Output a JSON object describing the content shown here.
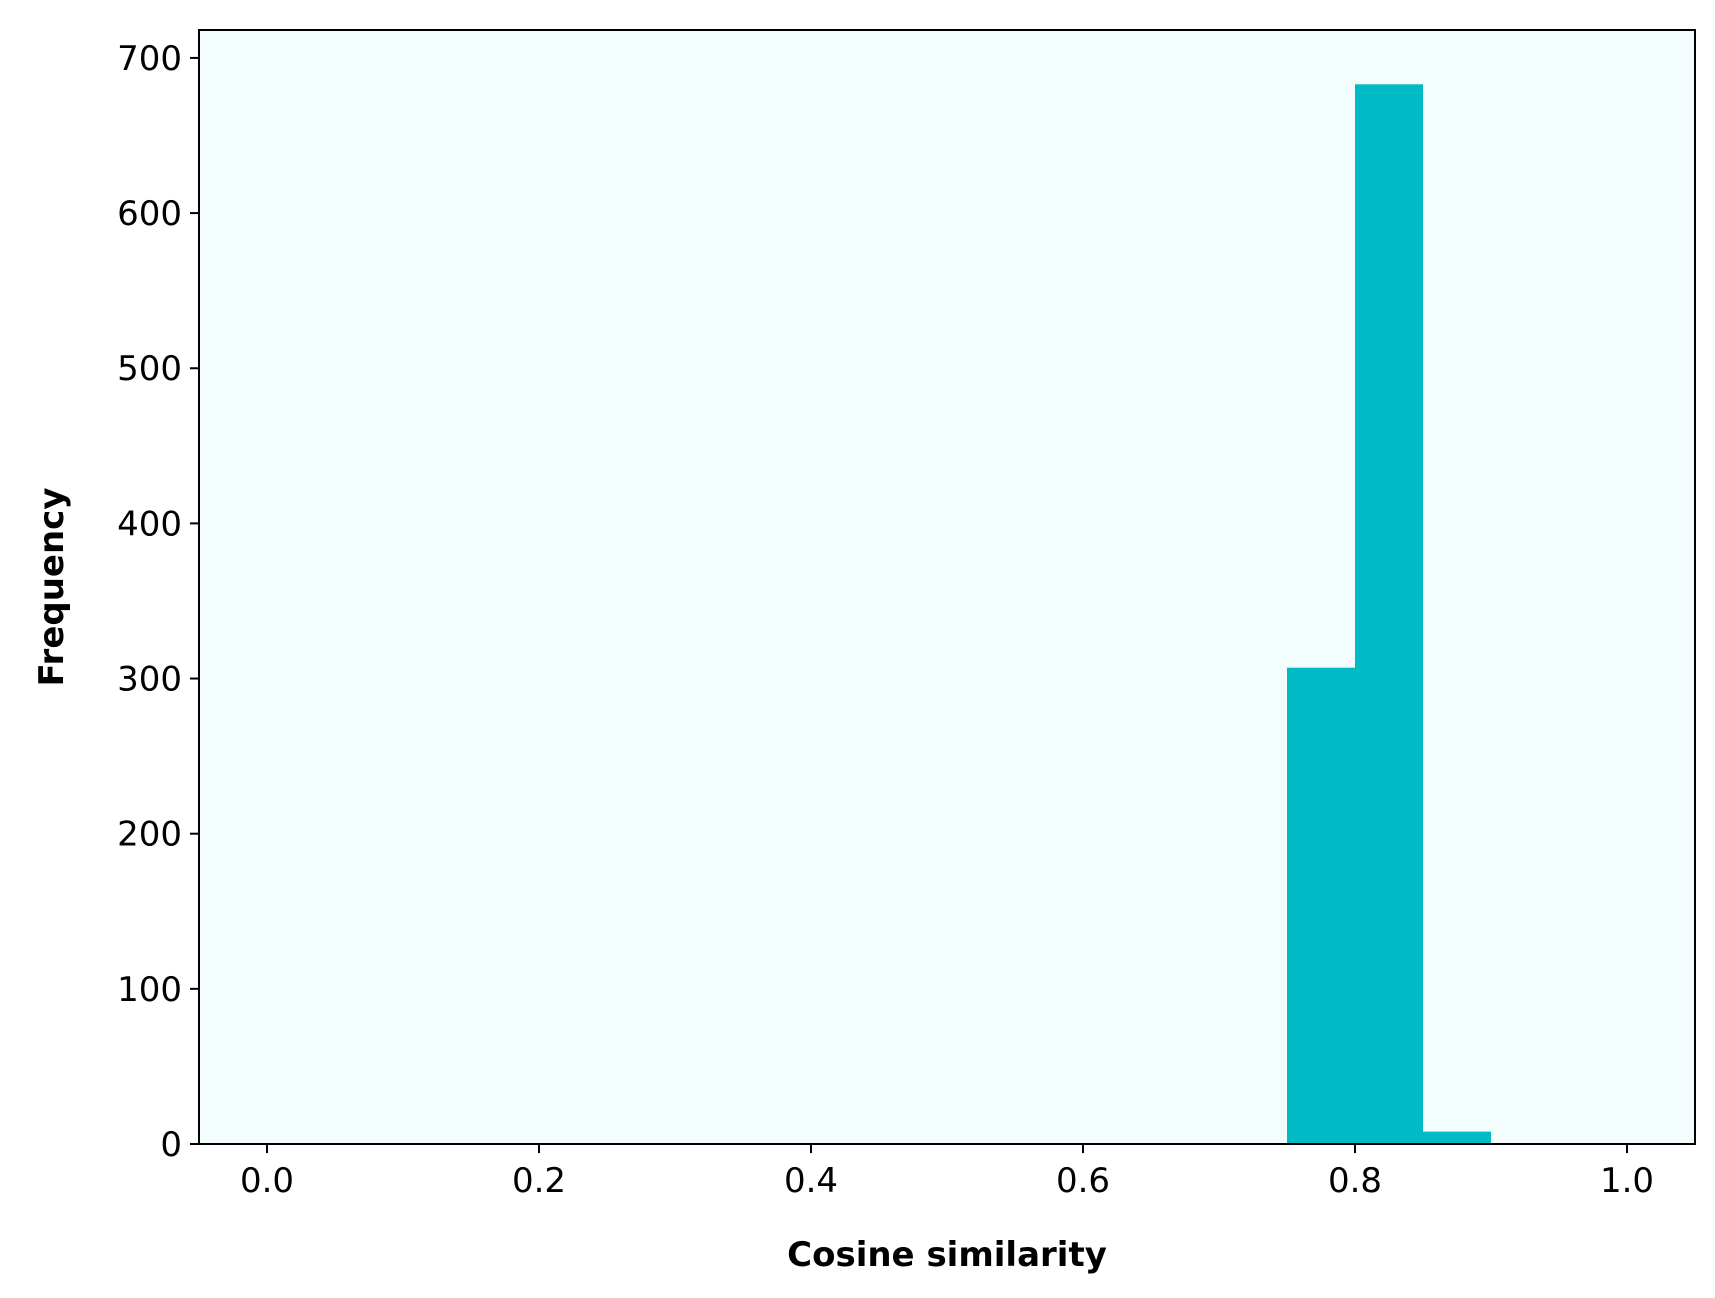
{
  "chart_data": {
    "type": "bar",
    "title": "",
    "xlabel": "Cosine similarity",
    "ylabel": "Frequency",
    "xlim": [
      -0.05,
      1.05
    ],
    "ylim": [
      0,
      718
    ],
    "xticks": [
      0.0,
      0.2,
      0.4,
      0.6,
      0.8,
      1.0
    ],
    "xtick_labels": [
      "0.0",
      "0.2",
      "0.4",
      "0.6",
      "0.8",
      "1.0"
    ],
    "yticks": [
      0,
      100,
      200,
      300,
      400,
      500,
      600,
      700
    ],
    "ytick_labels": [
      "0",
      "100",
      "200",
      "300",
      "400",
      "500",
      "600",
      "700"
    ],
    "bins": [
      {
        "x0": 0.75,
        "x1": 0.8,
        "value": 307
      },
      {
        "x0": 0.8,
        "x1": 0.85,
        "value": 683
      },
      {
        "x0": 0.85,
        "x1": 0.9,
        "value": 8
      }
    ],
    "grid": false,
    "legend": "none",
    "colors": {
      "bar": "#00BAC5",
      "plot_background": "#F4FDFE",
      "axes": "#000000"
    }
  }
}
